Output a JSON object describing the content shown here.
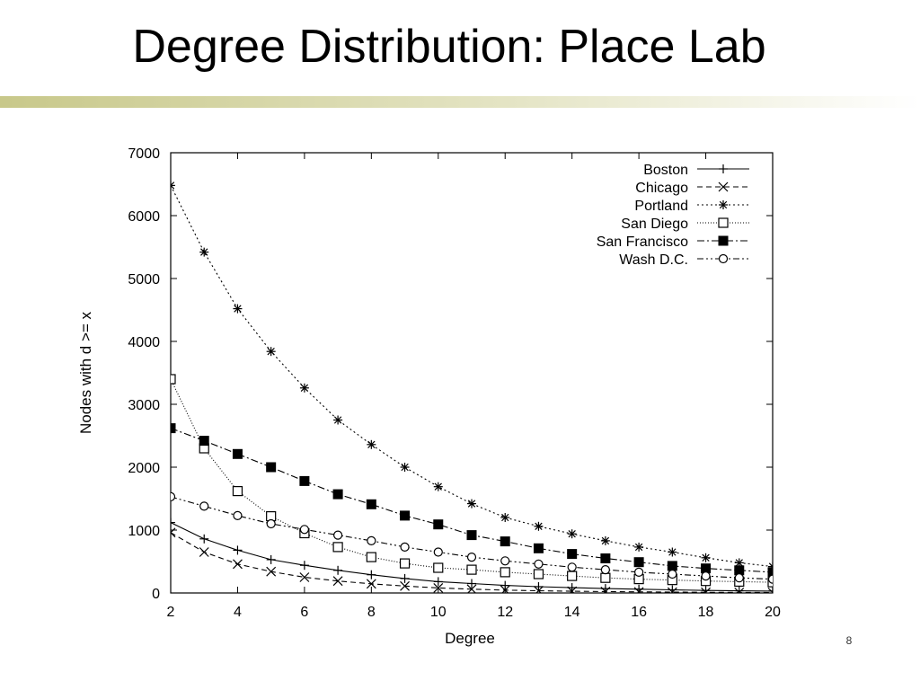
{
  "slide": {
    "title": "Degree Distribution: Place Lab",
    "page_number": "8",
    "title_bar_color": "#c8c88a"
  },
  "chart_data": {
    "type": "line",
    "title": "",
    "xlabel": "Degree",
    "ylabel": "Nodes with d >= x",
    "xlim": [
      2,
      20
    ],
    "ylim": [
      0,
      7000
    ],
    "x_ticks": [
      2,
      4,
      6,
      8,
      10,
      12,
      14,
      16,
      18,
      20
    ],
    "y_ticks": [
      0,
      1000,
      2000,
      3000,
      4000,
      5000,
      6000,
      7000
    ],
    "grid": false,
    "legend_position": "top-right",
    "x": [
      2,
      3,
      4,
      5,
      6,
      7,
      8,
      9,
      10,
      11,
      12,
      13,
      14,
      15,
      16,
      17,
      18,
      19,
      20
    ],
    "series": [
      {
        "name": "Boston",
        "marker": "plus",
        "dash": "solid",
        "values": [
          1120,
          860,
          680,
          530,
          440,
          360,
          290,
          230,
          180,
          150,
          120,
          100,
          85,
          70,
          60,
          50,
          40,
          35,
          30
        ]
      },
      {
        "name": "Chicago",
        "marker": "cross",
        "dash": "dashed",
        "values": [
          960,
          650,
          460,
          340,
          250,
          190,
          145,
          110,
          80,
          60,
          45,
          35,
          28,
          22,
          18,
          14,
          11,
          9,
          7
        ]
      },
      {
        "name": "Portland",
        "marker": "star",
        "dash": "dotted",
        "values": [
          6480,
          5420,
          4520,
          3840,
          3260,
          2750,
          2360,
          2000,
          1690,
          1420,
          1200,
          1060,
          940,
          830,
          730,
          650,
          560,
          480,
          420
        ]
      },
      {
        "name": "San Diego",
        "marker": "open-square",
        "dash": "fine-dotted",
        "values": [
          3400,
          2300,
          1620,
          1220,
          950,
          730,
          570,
          470,
          400,
          370,
          330,
          300,
          270,
          240,
          220,
          205,
          190,
          180,
          170
        ]
      },
      {
        "name": "San Francisco",
        "marker": "filled-square",
        "dash": "dash-dot",
        "values": [
          2620,
          2420,
          2210,
          2000,
          1780,
          1570,
          1410,
          1230,
          1090,
          920,
          820,
          710,
          620,
          550,
          490,
          430,
          390,
          360,
          330
        ]
      },
      {
        "name": "Wash D.C.",
        "marker": "open-circle",
        "dash": "dash-dot-dot",
        "values": [
          1530,
          1380,
          1230,
          1100,
          1010,
          920,
          830,
          730,
          650,
          570,
          510,
          460,
          410,
          370,
          330,
          300,
          270,
          240,
          220
        ]
      }
    ]
  }
}
